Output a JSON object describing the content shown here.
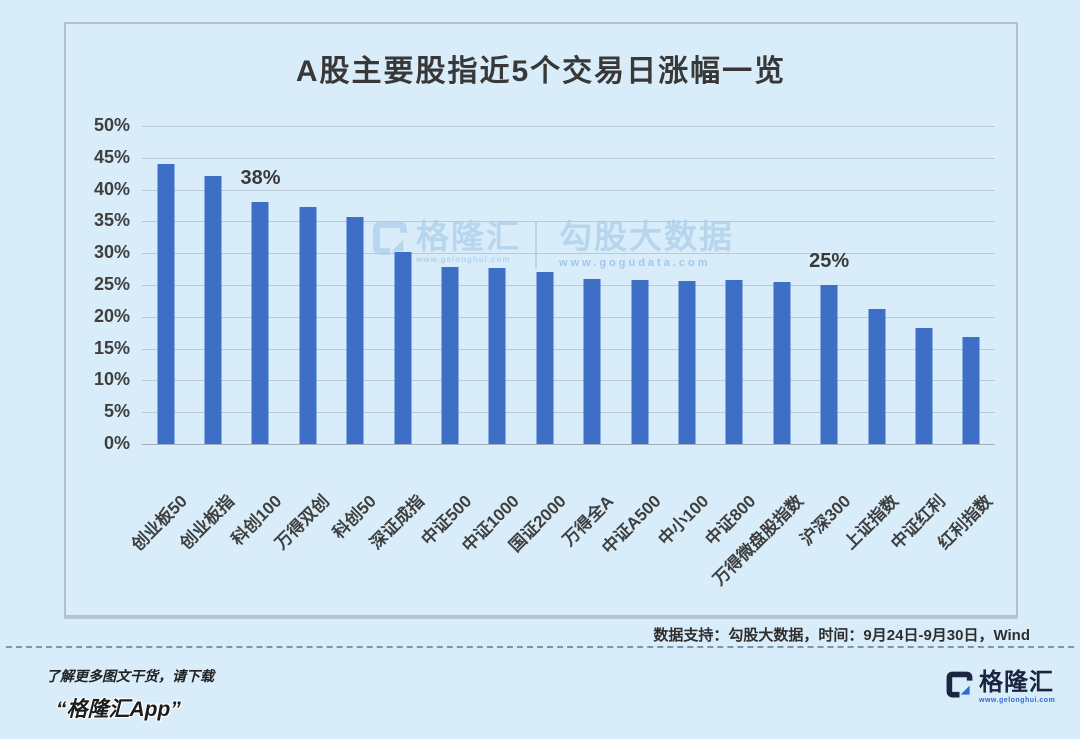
{
  "chart_data": {
    "type": "bar",
    "title": "A股主要股指近5个交易日涨幅一览",
    "categories": [
      "创业板50",
      "创业板指",
      "科创100",
      "万得双创",
      "科创50",
      "深证成指",
      "中证500",
      "中证1000",
      "国证2000",
      "万得全A",
      "中证A500",
      "中小100",
      "中证800",
      "万得微盘股指数",
      "沪深300",
      "上证指数",
      "中证红利",
      "红利指数"
    ],
    "values": [
      44.0,
      42.2,
      38.0,
      37.2,
      35.7,
      30.2,
      27.8,
      27.6,
      27.0,
      26.0,
      25.8,
      25.7,
      25.8,
      25.5,
      25.0,
      21.3,
      18.3,
      16.8
    ],
    "data_labels": {
      "2": "38%",
      "14": "25%"
    },
    "ylim": [
      0,
      50
    ],
    "ytick_labels": [
      "50%",
      "45%",
      "40%",
      "35%",
      "30%",
      "25%",
      "20%",
      "15%",
      "10%",
      "5%",
      "0%"
    ],
    "xlabel": "",
    "ylabel": "",
    "grid": true,
    "legend": "none",
    "bar_color": "#3e6fc6"
  },
  "watermark": {
    "brand": "格隆汇",
    "brand_url": "www.gelonghui.com",
    "partner": "勾股大数据",
    "partner_url": "www.gogudata.com"
  },
  "source_note": "数据支持：勾股大数据，时间：9月24日-9月30日，Wind",
  "footer": {
    "promo_line1": "了解更多图文干货，请下载",
    "promo_line2": "“格隆汇App”",
    "logo_text": "格隆汇",
    "logo_url": "www.gelonghui.com"
  },
  "colors": {
    "background": "#d8edf9",
    "bar": "#3e6fc6",
    "logo_navy": "#1b2440",
    "logo_blue": "#2f6bd8",
    "watermark_blue": "#accde9"
  }
}
